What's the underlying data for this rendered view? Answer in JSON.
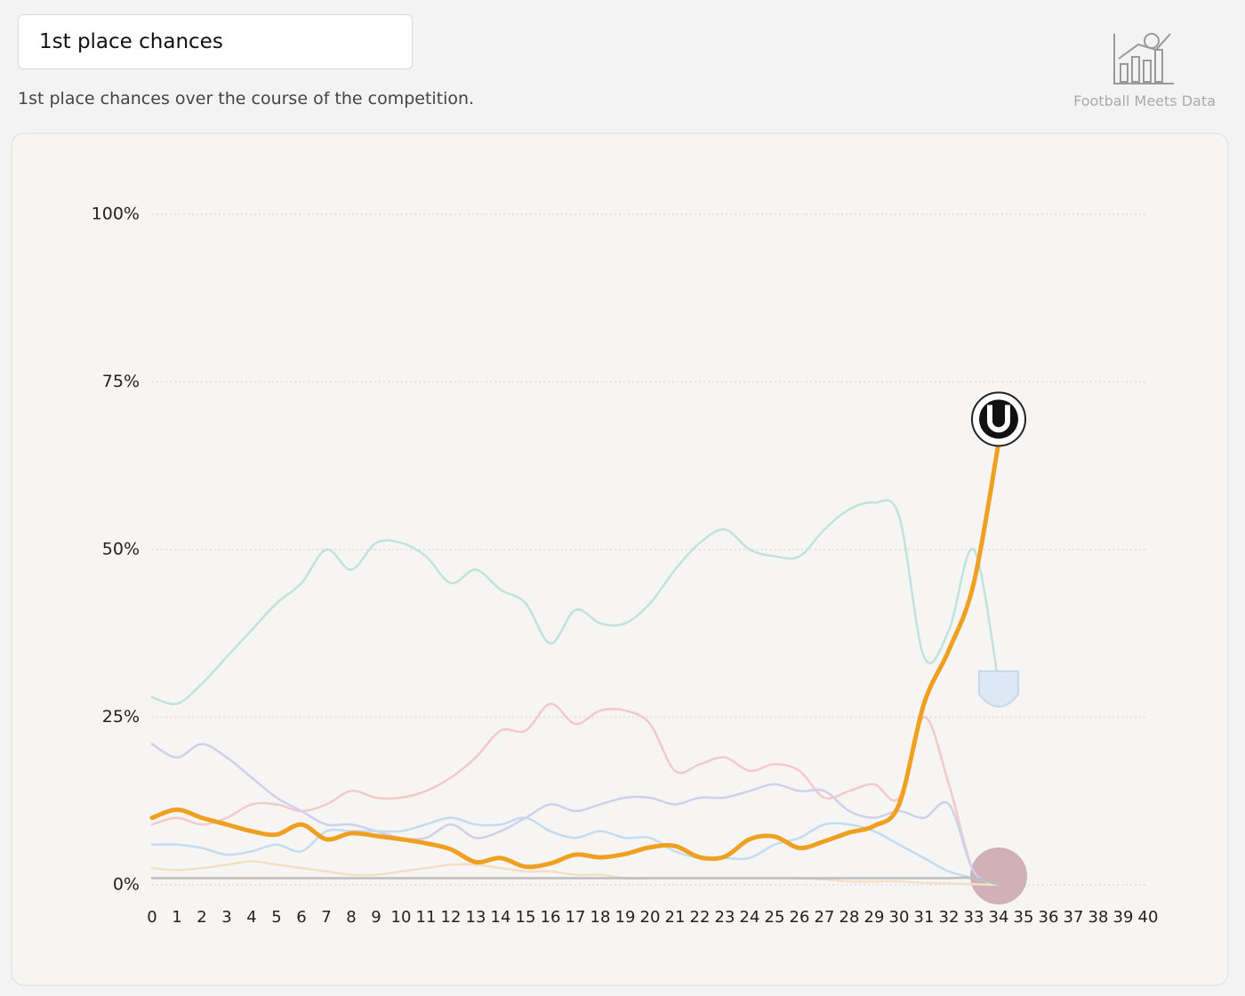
{
  "header": {
    "title": "1st place chances",
    "subtitle": "1st place chances over the course of the competition.",
    "brand": "Football Meets Data"
  },
  "chart_data": {
    "type": "line",
    "x": [
      0,
      1,
      2,
      3,
      4,
      5,
      6,
      7,
      8,
      9,
      10,
      11,
      12,
      13,
      14,
      15,
      16,
      17,
      18,
      19,
      20,
      21,
      22,
      23,
      24,
      25,
      26,
      27,
      28,
      29,
      30,
      31,
      32,
      33,
      34
    ],
    "xlim": [
      0,
      40
    ],
    "xticks": [
      0,
      1,
      2,
      3,
      4,
      5,
      6,
      7,
      8,
      9,
      10,
      11,
      12,
      13,
      14,
      15,
      16,
      17,
      18,
      19,
      20,
      21,
      22,
      23,
      24,
      25,
      26,
      27,
      28,
      29,
      30,
      31,
      32,
      33,
      34,
      35,
      36,
      37,
      38,
      39,
      40
    ],
    "ylim": [
      0,
      100
    ],
    "yticks": [
      {
        "value": 0,
        "label": "0%"
      },
      {
        "value": 25,
        "label": "25%"
      },
      {
        "value": 50,
        "label": "50%"
      },
      {
        "value": 75,
        "label": "75%"
      },
      {
        "value": 100,
        "label": "100%"
      }
    ],
    "grid": true,
    "series": [
      {
        "color": "#bfe3dc",
        "values": [
          28,
          27,
          30,
          34,
          38,
          42,
          45,
          50,
          47,
          51,
          51,
          49,
          45,
          47,
          44,
          42,
          36,
          41,
          39,
          39,
          42,
          47,
          51,
          53,
          50,
          49,
          49,
          53,
          56,
          57,
          55,
          34,
          38,
          50,
          30
        ]
      },
      {
        "color": "#f4c9c9",
        "values": [
          9,
          10,
          9,
          10,
          12,
          12,
          11,
          12,
          14,
          13,
          13,
          14,
          16,
          19,
          23,
          23,
          27,
          24,
          26,
          26,
          24,
          17,
          18,
          19,
          17,
          18,
          17,
          13,
          14,
          15,
          13,
          25,
          15,
          2,
          0
        ]
      },
      {
        "color": "#cfd0ec",
        "values": [
          21,
          19,
          21,
          19,
          16,
          13,
          11,
          9,
          9,
          8,
          7,
          7,
          9,
          7,
          8,
          10,
          12,
          11,
          12,
          13,
          13,
          12,
          13,
          13,
          14,
          15,
          14,
          14,
          11,
          10,
          11,
          10,
          12,
          2,
          0
        ]
      },
      {
        "color": "#c4dcee",
        "values": [
          6,
          6,
          5.5,
          4.5,
          5,
          6,
          5,
          8,
          8,
          8,
          8,
          9,
          10,
          9,
          9,
          10,
          8,
          7,
          8,
          7,
          7,
          5,
          4,
          4,
          4,
          6,
          7,
          9,
          9,
          8,
          6,
          4,
          2,
          1,
          0
        ]
      },
      {
        "color": "#f1e0c2",
        "values": [
          2.5,
          2.2,
          2.5,
          3,
          3.5,
          3,
          2.5,
          2,
          1.5,
          1.5,
          2,
          2.5,
          3,
          3,
          2.5,
          2,
          2,
          1.5,
          1.5,
          1,
          1,
          1,
          1,
          1,
          1,
          1,
          1,
          0.8,
          0.5,
          0.5,
          0.5,
          0.3,
          0.2,
          0.1,
          0
        ]
      },
      {
        "color": "#bdbdbd",
        "values": [
          1,
          1,
          1,
          1,
          1,
          1,
          1,
          1,
          1,
          1,
          1,
          1,
          1,
          1,
          1,
          1,
          1,
          1,
          1,
          1,
          1,
          1,
          1,
          1,
          1,
          1,
          1,
          1,
          1,
          1,
          1,
          1,
          1,
          1,
          0
        ]
      },
      {
        "color": "#f0a020",
        "values": [
          10,
          11.2,
          10,
          9,
          8,
          7.5,
          9,
          6.8,
          7.7,
          7.3,
          6.8,
          6.2,
          5.3,
          3.4,
          4,
          2.7,
          3.2,
          4.5,
          4.1,
          4.6,
          5.6,
          5.8,
          4.1,
          4.2,
          6.8,
          7.2,
          5.5,
          6.5,
          7.8,
          8.8,
          12,
          27,
          35,
          45,
          66
        ]
      }
    ]
  }
}
